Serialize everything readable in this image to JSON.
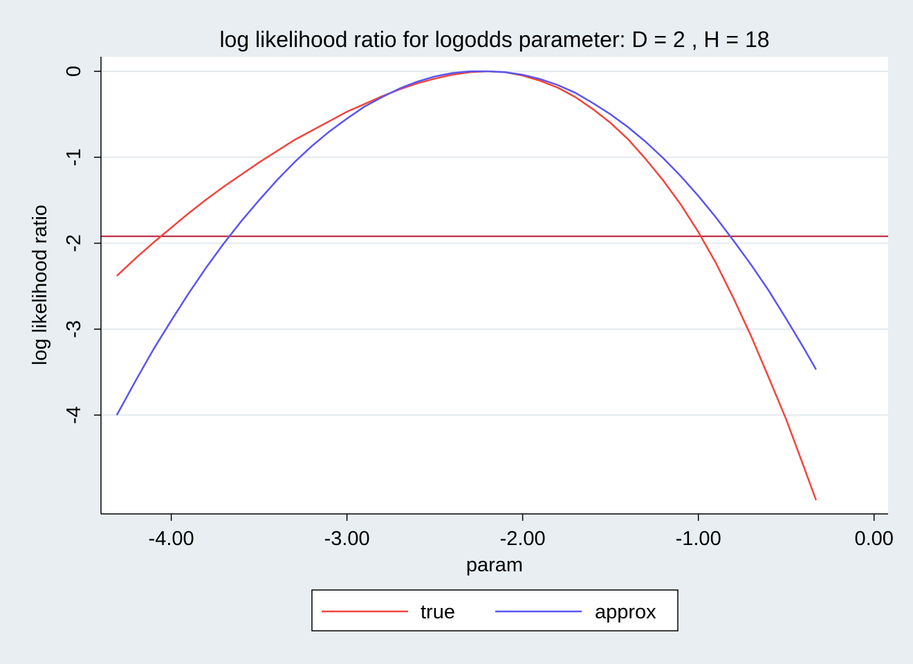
{
  "chart_data": {
    "type": "line",
    "title": "log likelihood ratio for logodds parameter: D = 2 , H = 18",
    "xlabel": "param",
    "ylabel": "log likelihood ratio",
    "xlim": [
      -4.4,
      0.08
    ],
    "ylim": [
      -5.15,
      0.17
    ],
    "x_ticks": [
      -4,
      -3,
      -2,
      -1,
      0
    ],
    "x_tick_labels": [
      "-4.00",
      "-3.00",
      "-2.00",
      "-1.00",
      "0.00"
    ],
    "y_ticks": [
      0,
      -1,
      -2,
      -3,
      -4
    ],
    "y_tick_labels": [
      "0",
      "-1",
      "-2",
      "-3",
      "-4"
    ],
    "grid": "horizontal",
    "reference_line": {
      "y": -1.92,
      "color": "#b5162b"
    },
    "series": [
      {
        "name": "true",
        "color": "#f2453d",
        "x": [
          -4.31,
          -4.2,
          -4.1,
          -4.0,
          -3.9,
          -3.8,
          -3.7,
          -3.6,
          -3.5,
          -3.4,
          -3.3,
          -3.2,
          -3.1,
          -3.0,
          -2.9,
          -2.8,
          -2.7,
          -2.6,
          -2.5,
          -2.4,
          -2.3,
          -2.2,
          -2.1,
          -2.0,
          -1.9,
          -1.8,
          -1.7,
          -1.6,
          -1.5,
          -1.4,
          -1.3,
          -1.2,
          -1.1,
          -1.0,
          -0.9,
          -0.8,
          -0.7,
          -0.6,
          -0.5,
          -0.4,
          -0.33
        ],
        "values": [
          -2.38,
          -2.17,
          -1.99,
          -1.82,
          -1.65,
          -1.49,
          -1.34,
          -1.2,
          -1.06,
          -0.93,
          -0.8,
          -0.69,
          -0.58,
          -0.47,
          -0.38,
          -0.29,
          -0.21,
          -0.14,
          -0.085,
          -0.04,
          -0.01,
          0.0,
          -0.01,
          -0.05,
          -0.11,
          -0.19,
          -0.3,
          -0.44,
          -0.6,
          -0.79,
          -1.02,
          -1.27,
          -1.55,
          -1.87,
          -2.23,
          -2.64,
          -3.08,
          -3.56,
          -4.05,
          -4.6,
          -4.99
        ]
      },
      {
        "name": "approx",
        "color": "#5b55f0",
        "x": [
          -4.31,
          -4.2,
          -4.1,
          -4.0,
          -3.9,
          -3.8,
          -3.7,
          -3.6,
          -3.5,
          -3.4,
          -3.3,
          -3.2,
          -3.1,
          -3.0,
          -2.9,
          -2.8,
          -2.7,
          -2.6,
          -2.5,
          -2.4,
          -2.3,
          -2.2,
          -2.1,
          -2.0,
          -1.9,
          -1.8,
          -1.7,
          -1.6,
          -1.5,
          -1.4,
          -1.3,
          -1.2,
          -1.1,
          -1.0,
          -0.9,
          -0.8,
          -0.7,
          -0.6,
          -0.5,
          -0.4,
          -0.33
        ],
        "values": [
          -4.0,
          -3.59,
          -3.23,
          -2.9,
          -2.58,
          -2.28,
          -2.0,
          -1.74,
          -1.5,
          -1.27,
          -1.06,
          -0.87,
          -0.7,
          -0.55,
          -0.41,
          -0.3,
          -0.2,
          -0.12,
          -0.06,
          -0.02,
          0.0,
          0.0,
          -0.01,
          -0.04,
          -0.09,
          -0.16,
          -0.25,
          -0.37,
          -0.5,
          -0.65,
          -0.82,
          -1.01,
          -1.22,
          -1.45,
          -1.7,
          -1.97,
          -2.25,
          -2.55,
          -2.88,
          -3.22,
          -3.47
        ]
      }
    ],
    "legend": {
      "position": "bottom-center",
      "entries": [
        "true",
        "approx"
      ]
    }
  }
}
